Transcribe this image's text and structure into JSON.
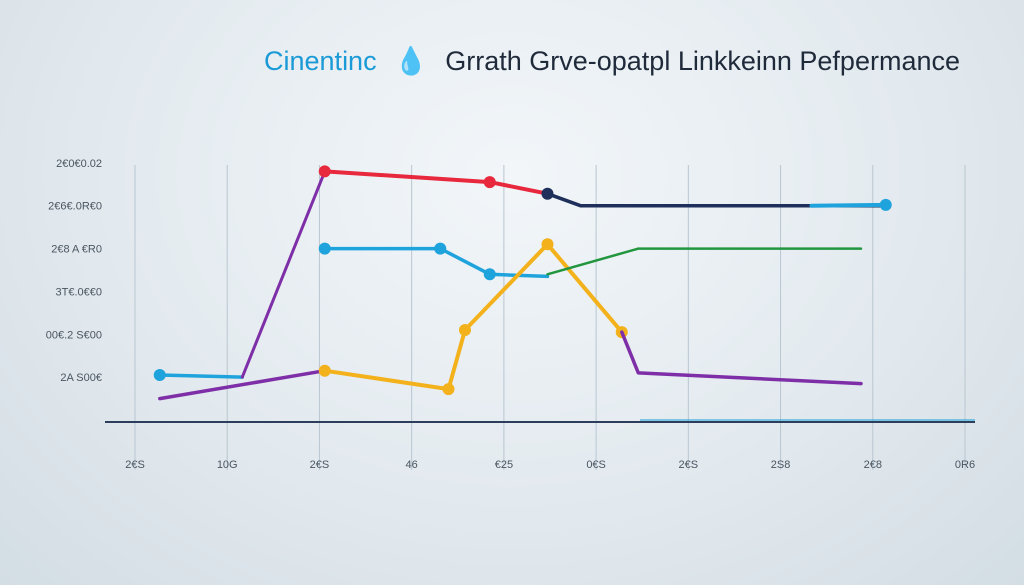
{
  "chart_data": {
    "type": "line",
    "title_prefix": "Cinentinc",
    "title": "Grrath Grve-opatpl Linkkeinn Pefpermance",
    "x_tick_labels": [
      "2€S",
      "10G",
      "2€S",
      "46",
      "€25",
      "0€S",
      "2€S",
      "2S8",
      "2€8",
      "0R6"
    ],
    "y_tick_labels": [
      "2€0€0.02",
      "2€6€.0R€0",
      "2€8 A €R0",
      "3T€.0€€0",
      "00€.2 S€00",
      "2A S00€"
    ],
    "y_ticks": [
      6,
      5,
      4,
      3,
      2,
      1
    ],
    "ylim": [
      0,
      7
    ],
    "x_range": [
      0,
      10
    ],
    "grid": true,
    "colors": {
      "red": "#e8283c",
      "blue": "#1fa3dc",
      "navy": "#1d2f5a",
      "purple": "#7e2fa8",
      "yellow": "#f3b21c",
      "green": "#22963f",
      "axis": "#2c3e5c",
      "title_prefix": "#1a9ad6",
      "title": "#1f2a3a"
    },
    "series": [
      {
        "color": "#1fa3dc",
        "width": 3.5,
        "points": [
          [
            0.3,
            1.05
          ],
          [
            1.3,
            1.0
          ]
        ],
        "markers": [
          0
        ]
      },
      {
        "color": "#7e2fa8",
        "width": 3,
        "points": [
          [
            1.3,
            1.0
          ],
          [
            2.3,
            5.8
          ]
        ]
      },
      {
        "color": "#e8283c",
        "width": 4,
        "points": [
          [
            2.3,
            5.8
          ],
          [
            4.3,
            5.55
          ],
          [
            5.0,
            5.28
          ]
        ],
        "markers": [
          0,
          1
        ]
      },
      {
        "color": "#1d2f5a",
        "width": 3.5,
        "points": [
          [
            5.0,
            5.28
          ],
          [
            5.4,
            5.0
          ],
          [
            9.1,
            5.0
          ]
        ],
        "markers": [
          0
        ]
      },
      {
        "color": "#1fa3dc",
        "width": 4,
        "points": [
          [
            8.2,
            5.0
          ],
          [
            9.1,
            5.02
          ]
        ],
        "markers": [
          1
        ]
      },
      {
        "color": "#1fa3dc",
        "width": 3.5,
        "points": [
          [
            2.3,
            4.0
          ],
          [
            3.7,
            4.0
          ],
          [
            4.3,
            3.4
          ],
          [
            5.0,
            3.35
          ]
        ],
        "markers": [
          0,
          1,
          2
        ]
      },
      {
        "color": "#7e2fa8",
        "width": 3.5,
        "points": [
          [
            0.3,
            0.5
          ],
          [
            2.3,
            1.15
          ]
        ]
      },
      {
        "color": "#f3b21c",
        "width": 4,
        "points": [
          [
            2.3,
            1.15
          ],
          [
            3.8,
            0.72
          ],
          [
            4.0,
            2.1
          ],
          [
            5.0,
            4.1
          ],
          [
            5.9,
            2.05
          ]
        ],
        "markers": [
          0,
          1,
          2,
          3,
          4
        ]
      },
      {
        "color": "#7e2fa8",
        "width": 3.5,
        "points": [
          [
            5.9,
            2.05
          ],
          [
            6.1,
            1.1
          ],
          [
            8.8,
            0.85
          ]
        ]
      },
      {
        "color": "#22963f",
        "width": 2.5,
        "points": [
          [
            5.0,
            3.4
          ],
          [
            6.1,
            4.0
          ],
          [
            8.8,
            4.0
          ]
        ]
      }
    ]
  }
}
